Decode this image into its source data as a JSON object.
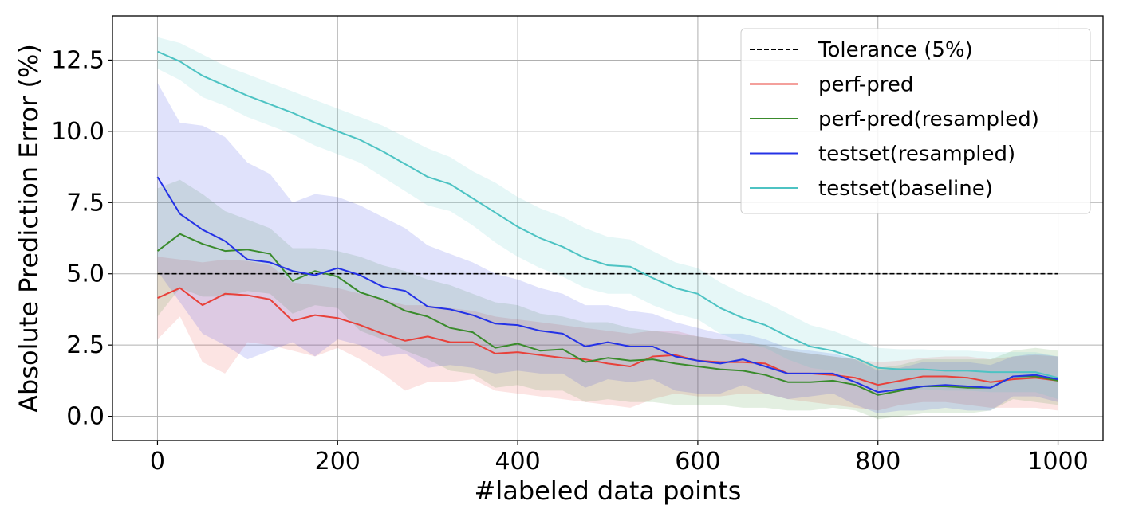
{
  "chart_data": {
    "type": "line",
    "title": "",
    "xlabel": "#labeled data points",
    "ylabel": "Absolute Prediction Error (%)",
    "xlim": [
      -50,
      1050
    ],
    "ylim": [
      -0.85,
      14.05
    ],
    "xticks": [
      0,
      200,
      400,
      600,
      800,
      1000
    ],
    "xtick_labels": [
      "0",
      "200",
      "400",
      "600",
      "800",
      "1000"
    ],
    "yticks": [
      0.0,
      2.5,
      5.0,
      7.5,
      10.0,
      12.5
    ],
    "ytick_labels": [
      "0.0",
      "2.5",
      "5.0",
      "7.5",
      "10.0",
      "12.5"
    ],
    "grid": true,
    "legend_position": "top-right",
    "x": [
      0,
      25,
      50,
      75,
      100,
      125,
      150,
      175,
      200,
      225,
      250,
      275,
      300,
      325,
      350,
      375,
      400,
      425,
      450,
      475,
      500,
      525,
      550,
      575,
      600,
      625,
      650,
      675,
      700,
      725,
      750,
      775,
      800,
      825,
      850,
      875,
      900,
      925,
      950,
      975,
      1000
    ],
    "reference_lines": [
      {
        "name": "Tolerance (5%)",
        "y": 5.0,
        "x_range": [
          0,
          1000
        ],
        "color": "#000000",
        "style": "dashed"
      }
    ],
    "series": [
      {
        "name": "perf-pred",
        "color": "#e8413a",
        "values": [
          4.15,
          4.5,
          3.9,
          4.3,
          4.25,
          4.1,
          3.35,
          3.55,
          3.45,
          3.2,
          2.9,
          2.65,
          2.8,
          2.6,
          2.6,
          2.2,
          2.25,
          2.15,
          2.05,
          2.0,
          1.85,
          1.75,
          2.1,
          2.15,
          1.95,
          1.9,
          1.9,
          1.85,
          1.5,
          1.5,
          1.45,
          1.35,
          1.1,
          1.25,
          1.4,
          1.4,
          1.35,
          1.2,
          1.3,
          1.35,
          1.25
        ],
        "upper": [
          5.6,
          5.5,
          5.4,
          5.5,
          5.45,
          5.3,
          4.7,
          4.6,
          4.5,
          4.3,
          4.1,
          3.9,
          3.9,
          3.8,
          3.7,
          3.5,
          3.4,
          3.3,
          3.2,
          3.1,
          3.0,
          2.9,
          3.0,
          3.0,
          2.8,
          2.7,
          2.6,
          2.5,
          2.3,
          2.2,
          2.1,
          2.0,
          1.9,
          1.95,
          2.05,
          2.1,
          2.1,
          2.0,
          2.1,
          2.15,
          2.1
        ],
        "lower": [
          2.7,
          3.5,
          1.9,
          1.5,
          2.6,
          2.5,
          2.3,
          2.1,
          2.4,
          2.0,
          1.5,
          0.9,
          1.2,
          1.2,
          1.3,
          0.9,
          0.8,
          0.7,
          0.6,
          0.5,
          0.4,
          0.3,
          0.6,
          0.8,
          0.7,
          0.7,
          0.8,
          0.8,
          0.6,
          0.5,
          0.4,
          0.3,
          0.2,
          0.4,
          0.5,
          0.5,
          0.4,
          0.3,
          0.3,
          0.3,
          0.2
        ]
      },
      {
        "name": "perf-pred(resampled)",
        "color": "#3a8b2c",
        "values": [
          5.8,
          6.4,
          6.05,
          5.8,
          5.85,
          5.7,
          4.75,
          5.1,
          4.9,
          4.35,
          4.1,
          3.7,
          3.5,
          3.1,
          2.95,
          2.4,
          2.55,
          2.3,
          2.35,
          1.9,
          2.05,
          1.95,
          2.0,
          1.85,
          1.75,
          1.65,
          1.6,
          1.45,
          1.2,
          1.2,
          1.25,
          1.1,
          0.75,
          0.9,
          1.05,
          1.05,
          1.0,
          1.0,
          1.4,
          1.4,
          1.25
        ],
        "upper": [
          8.0,
          8.3,
          7.8,
          7.2,
          6.9,
          6.6,
          5.9,
          5.9,
          5.8,
          5.6,
          5.3,
          5.1,
          4.8,
          4.6,
          4.3,
          4.0,
          3.9,
          3.6,
          3.5,
          3.3,
          3.3,
          3.1,
          3.0,
          2.9,
          2.8,
          2.7,
          2.6,
          2.5,
          2.3,
          2.2,
          2.1,
          2.0,
          1.7,
          1.8,
          2.0,
          2.0,
          2.0,
          2.0,
          2.3,
          2.4,
          2.3
        ],
        "lower": [
          3.5,
          4.5,
          4.2,
          4.2,
          4.4,
          4.3,
          3.6,
          3.9,
          3.8,
          3.0,
          2.7,
          2.3,
          2.0,
          1.6,
          1.5,
          1.0,
          1.1,
          0.9,
          0.9,
          0.5,
          0.6,
          0.5,
          0.5,
          0.4,
          0.4,
          0.4,
          0.3,
          0.3,
          0.2,
          0.2,
          0.3,
          0.2,
          -0.1,
          0.0,
          0.1,
          0.1,
          0.1,
          0.2,
          0.6,
          0.5,
          0.4
        ]
      },
      {
        "name": "testset(resampled)",
        "color": "#2432e6",
        "values": [
          8.4,
          7.1,
          6.55,
          6.15,
          5.5,
          5.4,
          5.1,
          4.95,
          5.2,
          4.95,
          4.55,
          4.4,
          3.85,
          3.75,
          3.55,
          3.25,
          3.2,
          3.0,
          2.9,
          2.45,
          2.6,
          2.45,
          2.45,
          2.1,
          1.95,
          1.85,
          2.0,
          1.75,
          1.5,
          1.5,
          1.5,
          1.2,
          0.85,
          0.95,
          1.05,
          1.1,
          1.05,
          1.0,
          1.4,
          1.45,
          1.3
        ],
        "upper": [
          11.7,
          10.3,
          10.2,
          9.8,
          8.9,
          8.5,
          7.5,
          7.8,
          7.7,
          7.4,
          7.0,
          6.6,
          6.0,
          5.7,
          5.4,
          5.0,
          4.8,
          4.5,
          4.3,
          3.9,
          3.9,
          3.7,
          3.6,
          3.3,
          3.1,
          2.9,
          2.9,
          2.7,
          2.4,
          2.3,
          2.2,
          2.0,
          1.6,
          1.7,
          1.9,
          1.9,
          1.9,
          1.8,
          2.1,
          2.2,
          2.1
        ],
        "lower": [
          5.1,
          4.0,
          2.9,
          2.5,
          2.0,
          2.3,
          2.6,
          2.1,
          2.7,
          2.5,
          2.1,
          2.2,
          1.7,
          1.8,
          1.7,
          1.5,
          1.6,
          1.5,
          1.5,
          1.0,
          1.3,
          1.2,
          1.3,
          0.9,
          0.8,
          0.8,
          1.1,
          0.8,
          0.6,
          0.7,
          0.8,
          0.4,
          0.1,
          0.2,
          0.2,
          0.3,
          0.2,
          0.2,
          0.7,
          0.7,
          0.5
        ]
      },
      {
        "name": "testset(baseline)",
        "color": "#4dc3c3",
        "values": [
          12.8,
          12.45,
          11.95,
          11.6,
          11.25,
          10.95,
          10.65,
          10.3,
          10.0,
          9.7,
          9.3,
          8.85,
          8.4,
          8.15,
          7.65,
          7.15,
          6.65,
          6.25,
          5.95,
          5.55,
          5.3,
          5.25,
          4.85,
          4.5,
          4.3,
          3.8,
          3.45,
          3.2,
          2.8,
          2.45,
          2.3,
          2.05,
          1.7,
          1.65,
          1.65,
          1.6,
          1.6,
          1.55,
          1.55,
          1.55,
          1.35
        ],
        "upper": [
          13.3,
          13.1,
          12.7,
          12.3,
          12.0,
          11.7,
          11.4,
          11.1,
          10.8,
          10.5,
          10.2,
          9.8,
          9.4,
          9.1,
          8.6,
          8.2,
          7.7,
          7.3,
          7.0,
          6.6,
          6.3,
          6.2,
          5.8,
          5.4,
          5.2,
          4.7,
          4.3,
          4.0,
          3.6,
          3.2,
          3.0,
          2.7,
          2.4,
          2.35,
          2.35,
          2.3,
          2.3,
          2.25,
          2.25,
          2.25,
          2.1
        ],
        "lower": [
          12.2,
          11.8,
          11.2,
          10.9,
          10.5,
          10.2,
          9.9,
          9.5,
          9.2,
          8.9,
          8.4,
          7.9,
          7.4,
          7.2,
          6.7,
          6.1,
          5.6,
          5.2,
          4.9,
          4.5,
          4.3,
          4.3,
          3.9,
          3.6,
          3.4,
          2.9,
          2.6,
          2.4,
          2.0,
          1.7,
          1.6,
          1.4,
          1.0,
          0.95,
          0.95,
          0.9,
          0.9,
          0.85,
          0.85,
          0.85,
          0.6
        ]
      }
    ],
    "legend": [
      {
        "label": "Tolerance (5%)",
        "color": "#000000",
        "style": "dashed"
      },
      {
        "label": "perf-pred",
        "color": "#e8413a",
        "style": "solid"
      },
      {
        "label": "perf-pred(resampled)",
        "color": "#3a8b2c",
        "style": "solid"
      },
      {
        "label": "testset(resampled)",
        "color": "#2432e6",
        "style": "solid"
      },
      {
        "label": "testset(baseline)",
        "color": "#4dc3c3",
        "style": "solid"
      }
    ]
  }
}
